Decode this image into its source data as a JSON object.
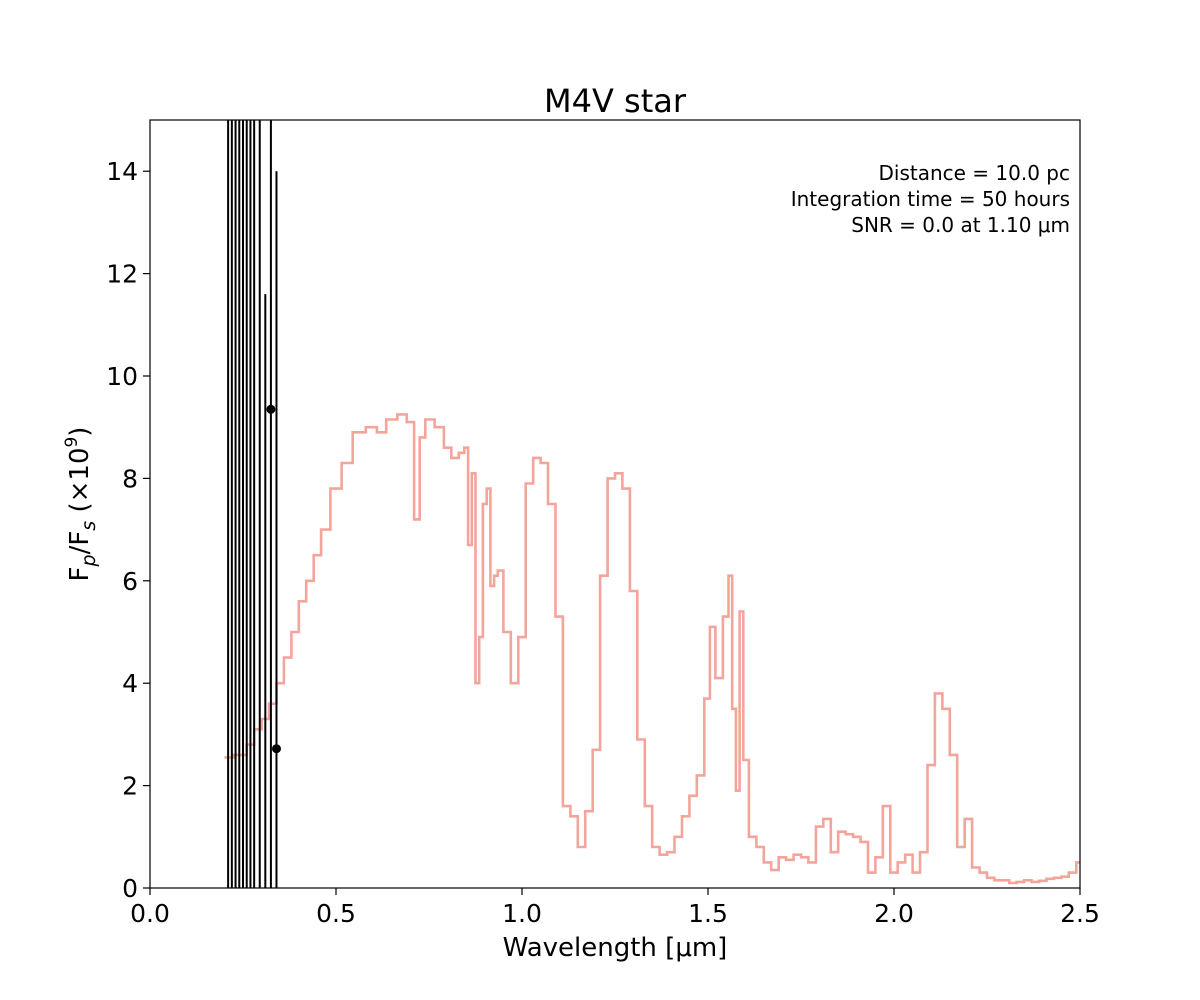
{
  "chart_data": {
    "type": "line",
    "title": "M4V star",
    "xlabel": "Wavelength [μm]",
    "ylabel": "F_p/F_s (×10^9)",
    "xlim": [
      0.0,
      2.5
    ],
    "ylim": [
      0,
      15
    ],
    "xticks": [
      0.0,
      0.5,
      1.0,
      1.5,
      2.0,
      2.5
    ],
    "xtick_labels": [
      "0.0",
      "0.5",
      "1.0",
      "1.5",
      "2.0",
      "2.5"
    ],
    "yticks": [
      0,
      2,
      4,
      6,
      8,
      10,
      12,
      14
    ],
    "ytick_labels": [
      "0",
      "2",
      "4",
      "6",
      "8",
      "10",
      "12",
      "14"
    ],
    "grid": false,
    "annotations": [
      "Distance = 10.0 pc",
      "Integration time = 50 hours",
      "SNR = 0.0 at 1.10 μm"
    ],
    "series": [
      {
        "name": "",
        "color": "#f4a59b",
        "drawstyle": "steps-mid",
        "x": [
          0.2,
          0.25,
          0.27,
          0.29,
          0.31,
          0.33,
          0.35,
          0.37,
          0.39,
          0.41,
          0.43,
          0.45,
          0.47,
          0.5,
          0.53,
          0.56,
          0.6,
          0.62,
          0.65,
          0.68,
          0.7,
          0.72,
          0.73,
          0.75,
          0.78,
          0.8,
          0.82,
          0.84,
          0.85,
          0.86,
          0.87,
          0.88,
          0.89,
          0.9,
          0.91,
          0.92,
          0.93,
          0.94,
          0.96,
          0.98,
          1.0,
          1.02,
          1.04,
          1.06,
          1.08,
          1.1,
          1.12,
          1.14,
          1.16,
          1.18,
          1.2,
          1.22,
          1.24,
          1.26,
          1.28,
          1.3,
          1.32,
          1.34,
          1.36,
          1.38,
          1.4,
          1.42,
          1.44,
          1.46,
          1.48,
          1.5,
          1.51,
          1.53,
          1.55,
          1.56,
          1.57,
          1.58,
          1.59,
          1.6,
          1.62,
          1.64,
          1.66,
          1.68,
          1.7,
          1.72,
          1.74,
          1.76,
          1.78,
          1.8,
          1.82,
          1.84,
          1.86,
          1.88,
          1.9,
          1.92,
          1.94,
          1.96,
          1.98,
          2.0,
          2.02,
          2.04,
          2.06,
          2.08,
          2.1,
          2.12,
          2.14,
          2.16,
          2.18,
          2.2,
          2.22,
          2.24,
          2.26,
          2.28,
          2.3,
          2.32,
          2.34,
          2.36,
          2.38,
          2.4,
          2.42,
          2.44,
          2.46,
          2.48,
          2.5
        ],
        "values": [
          2.55,
          2.6,
          2.8,
          3.1,
          3.3,
          3.6,
          4.0,
          4.5,
          5.0,
          5.6,
          6.0,
          6.5,
          7.0,
          7.8,
          8.3,
          8.9,
          9.0,
          8.9,
          9.15,
          9.25,
          9.1,
          7.2,
          8.8,
          9.15,
          9.0,
          8.6,
          8.4,
          8.5,
          8.6,
          6.7,
          8.1,
          4.0,
          4.9,
          7.5,
          7.8,
          5.9,
          6.1,
          6.2,
          5.0,
          4.0,
          4.9,
          7.9,
          8.4,
          8.3,
          7.5,
          5.3,
          1.6,
          1.4,
          0.8,
          1.5,
          2.7,
          6.1,
          8.0,
          8.1,
          7.8,
          5.8,
          2.9,
          1.6,
          0.8,
          0.65,
          0.7,
          1.0,
          1.4,
          1.8,
          2.2,
          3.7,
          5.1,
          4.1,
          5.3,
          6.1,
          3.5,
          1.9,
          5.4,
          2.5,
          1.0,
          0.8,
          0.5,
          0.35,
          0.6,
          0.55,
          0.65,
          0.6,
          0.5,
          1.2,
          1.35,
          0.7,
          1.1,
          1.05,
          1.0,
          0.9,
          0.3,
          0.6,
          1.6,
          0.3,
          0.5,
          0.65,
          0.3,
          0.7,
          2.4,
          3.8,
          3.5,
          2.6,
          0.8,
          1.35,
          0.4,
          0.3,
          0.2,
          0.15,
          0.15,
          0.1,
          0.12,
          0.15,
          0.12,
          0.14,
          0.18,
          0.2,
          0.22,
          0.3,
          0.5
        ]
      }
    ],
    "error_bars": {
      "color": "#000000",
      "x": [
        0.21,
        0.22,
        0.23,
        0.24,
        0.25,
        0.26,
        0.27,
        0.28,
        0.295,
        0.31,
        0.325,
        0.34
      ],
      "y": [
        null,
        null,
        null,
        null,
        null,
        null,
        null,
        null,
        null,
        null,
        9.35,
        2.72
      ],
      "ylow": [
        0,
        0,
        0,
        0,
        0,
        0,
        0,
        0,
        0,
        0,
        0,
        0
      ],
      "yhigh": [
        15,
        15,
        15,
        15,
        15,
        15,
        15,
        15,
        15,
        11.6,
        15,
        14.0
      ]
    }
  }
}
